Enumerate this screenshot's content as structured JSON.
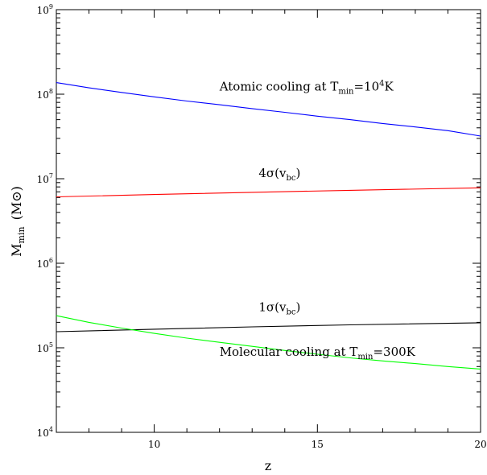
{
  "chart_data": {
    "type": "line",
    "xlabel": "z",
    "ylabel": {
      "main": "M",
      "sub": "min",
      "unit": "(M⊙)"
    },
    "xlim": [
      7,
      20
    ],
    "ylim": [
      10000,
      1000000000
    ],
    "yscale": "log",
    "grid": false,
    "x_ticks": [
      {
        "value": 10,
        "label": "10"
      },
      {
        "value": 15,
        "label": "15"
      },
      {
        "value": 20,
        "label": "20"
      }
    ],
    "y_ticks": [
      {
        "value": 10000,
        "base": "10",
        "exp": "4"
      },
      {
        "value": 100000,
        "base": "10",
        "exp": "5"
      },
      {
        "value": 1000000,
        "base": "10",
        "exp": "6"
      },
      {
        "value": 10000000,
        "base": "10",
        "exp": "7"
      },
      {
        "value": 100000000,
        "base": "10",
        "exp": "8"
      },
      {
        "value": 1000000000,
        "base": "10",
        "exp": "9"
      }
    ],
    "series": [
      {
        "color": "#0000ff",
        "x": [
          7,
          8,
          9,
          10,
          11,
          12,
          13,
          14,
          15,
          16,
          17,
          18,
          19,
          20
        ],
        "y": [
          137000000,
          119000000,
          105000000,
          93000000,
          83000000,
          75000000,
          67500000,
          61000000,
          55000000,
          50000000,
          45000000,
          41000000,
          37000000,
          32000000
        ]
      },
      {
        "color": "#ff0000",
        "x": [
          7,
          10,
          13,
          16,
          20
        ],
        "y": [
          6100000,
          6500000,
          6900000,
          7300000,
          7800000
        ]
      },
      {
        "color": "#000000",
        "x": [
          7,
          10,
          13,
          16,
          20
        ],
        "y": [
          155000,
          166000,
          177000,
          187000,
          198000
        ]
      },
      {
        "color": "#00ff00",
        "x": [
          7,
          8,
          9,
          10,
          11,
          12,
          13,
          14,
          15,
          16,
          17,
          18,
          19,
          20
        ],
        "y": [
          240000,
          200000,
          171000,
          148000,
          130000,
          116000,
          104000,
          93000,
          84000,
          76000,
          70000,
          65000,
          60000,
          56000
        ]
      }
    ],
    "annotations": [
      {
        "text": "Atomic cooling at T",
        "sub": "min",
        "text2": "=10",
        "sup": "4",
        "text3": "K",
        "x": 12,
        "y": 110000000
      },
      {
        "text": "4σ(v",
        "sub": "bc",
        "text2": ")",
        "x": 13.2,
        "y": 10500000
      },
      {
        "text": "1σ(v",
        "sub": "bc",
        "text2": ")",
        "x": 13.2,
        "y": 270000
      },
      {
        "text": "Molecular cooling at T",
        "sub": "min",
        "text2": "=300K",
        "x": 12,
        "y": 80000
      }
    ]
  }
}
